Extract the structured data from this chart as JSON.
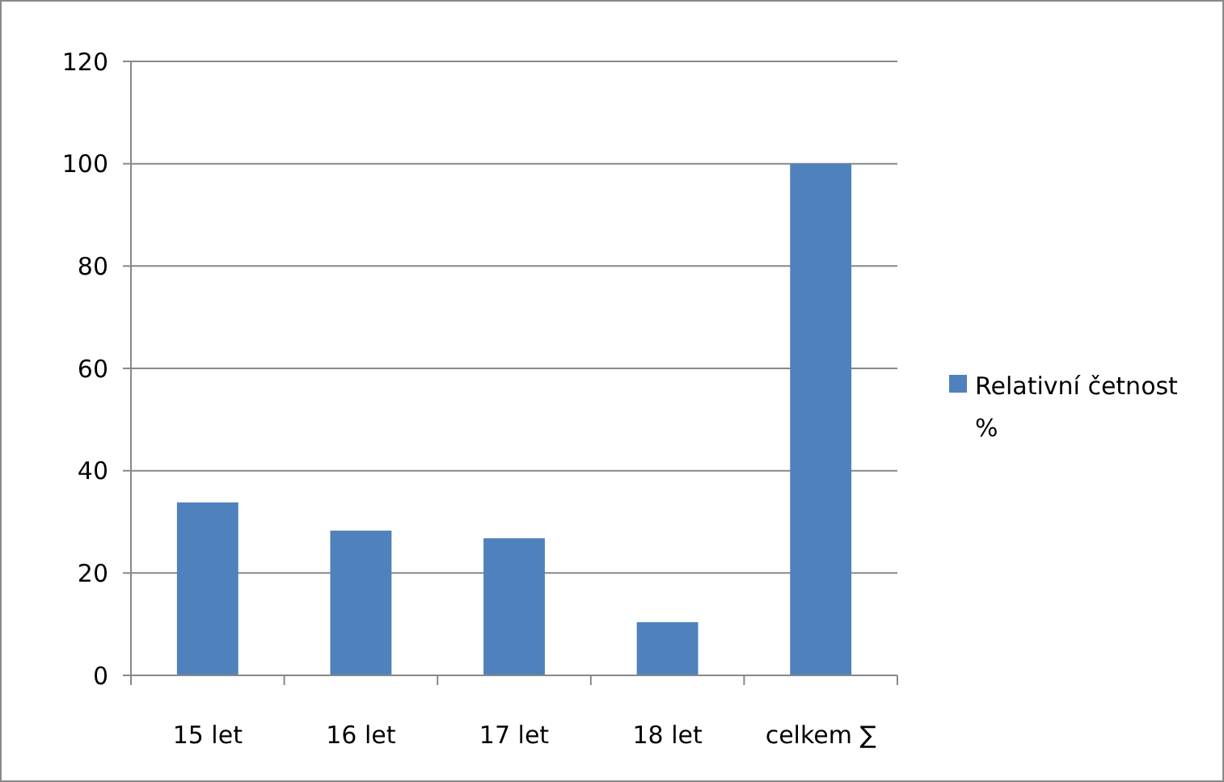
{
  "chart_data": {
    "type": "bar",
    "categories": [
      "15 let",
      "16 let",
      "17 let",
      "18 let",
      "celkem ∑"
    ],
    "series": [
      {
        "name": "Relativní četnost %",
        "color": "#4f81bd",
        "values": [
          33.8,
          28.3,
          26.8,
          10.4,
          100
        ]
      }
    ],
    "ylim": [
      0,
      120
    ],
    "yticks": [
      0,
      20,
      40,
      60,
      80,
      100,
      120
    ],
    "grid": "y",
    "legend": "right"
  }
}
